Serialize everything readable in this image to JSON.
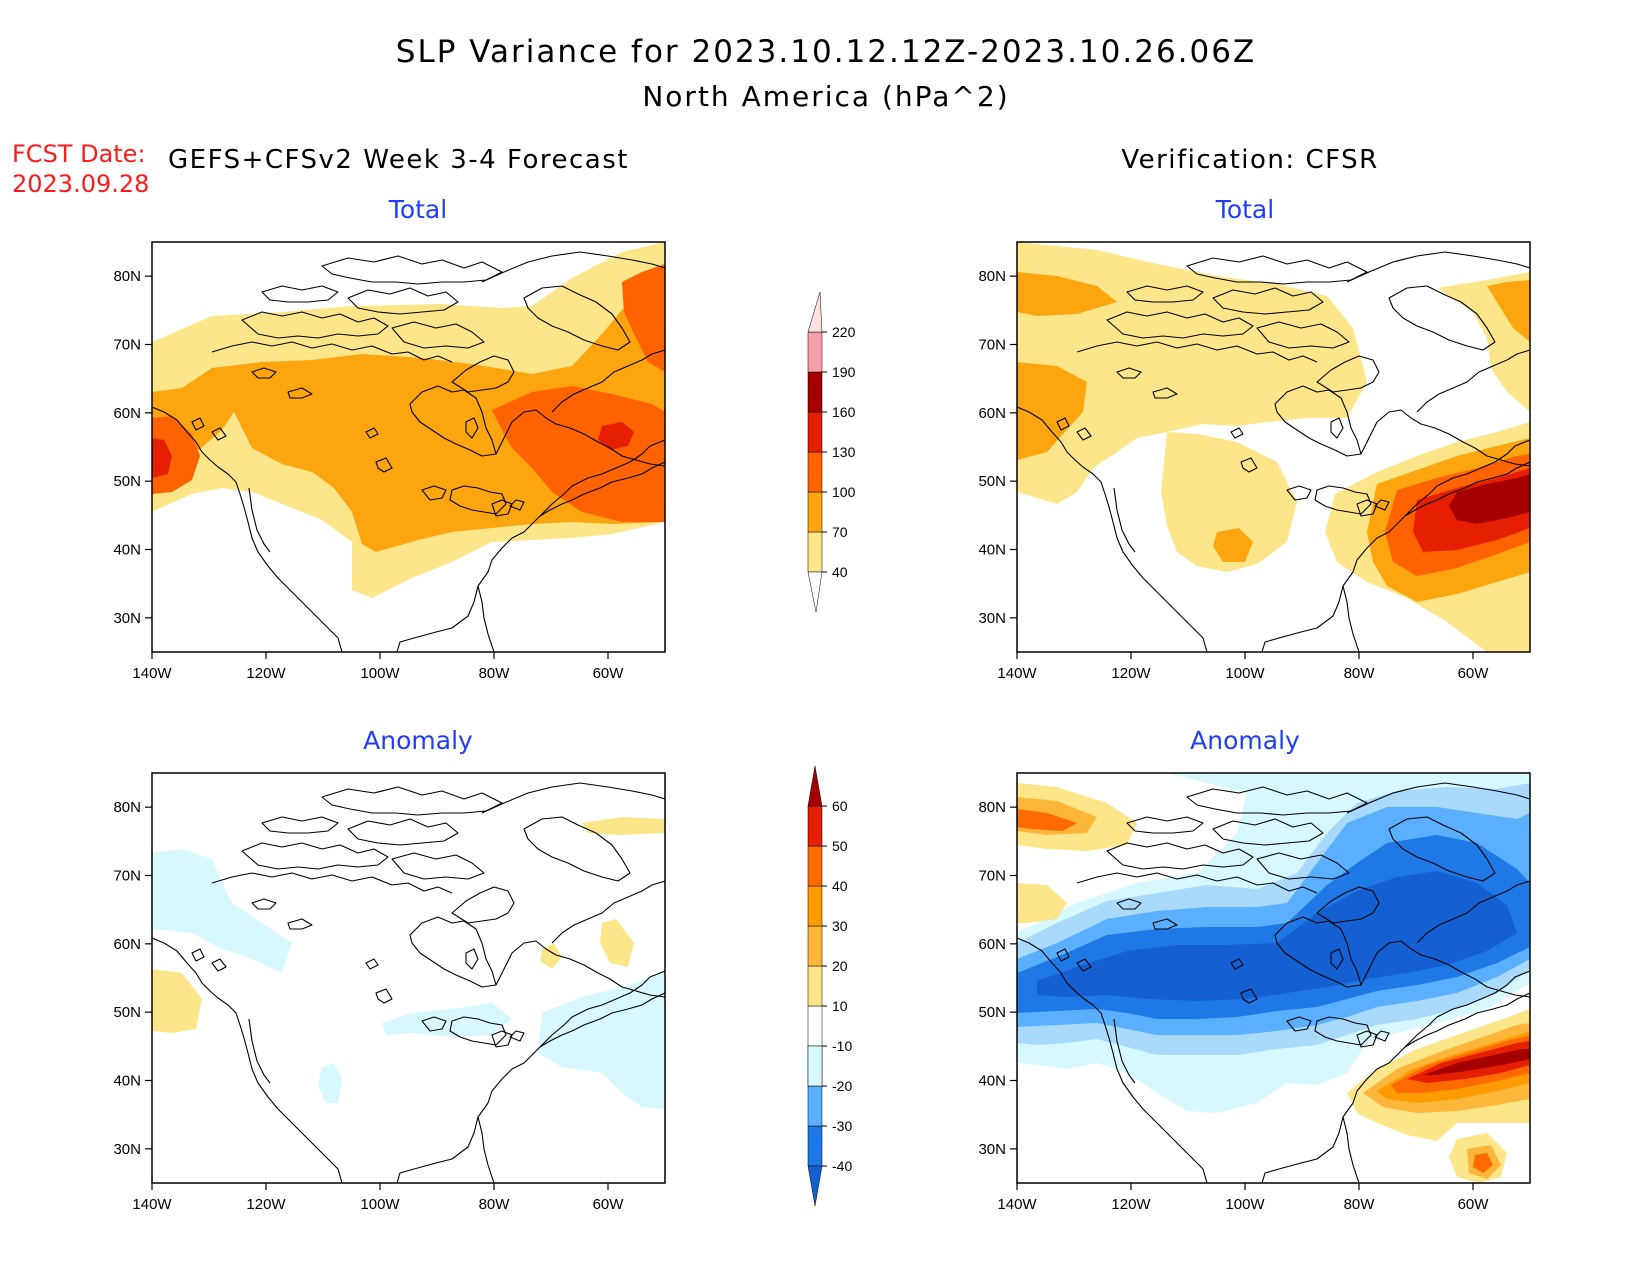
{
  "title_line1": "SLP Variance for 2023.10.12.12Z-2023.10.26.06Z",
  "title_line2": "North America (hPa^2)",
  "fcst_label": "FCST Date:",
  "fcst_date": "2023.09.28",
  "left_header": "GEFS+CFSv2 Week 3-4 Forecast",
  "right_header": "Verification: CFSR",
  "panel_titles": {
    "total": "Total",
    "anomaly": "Anomaly"
  },
  "map_extent": {
    "lon": [
      -140,
      -50
    ],
    "lat": [
      25,
      85
    ]
  },
  "lon_ticks": [
    "140W",
    "120W",
    "100W",
    "80W",
    "60W"
  ],
  "lat_ticks": [
    "30N",
    "40N",
    "50N",
    "60N",
    "70N",
    "80N"
  ],
  "colors": {
    "total": [
      "#fde68a",
      "#fda50f",
      "#ff6300",
      "#e61f00",
      "#a50000",
      "#f5a0a8",
      "#fde0e0"
    ],
    "anomaly_pos": [
      "#fde68a",
      "#fdb53a",
      "#fd9b00",
      "#ff6a00",
      "#e61f00",
      "#a50000"
    ],
    "anomaly_neg": [
      "#d7f8ff",
      "#a9d9fb",
      "#5ab0ff",
      "#1e78e6",
      "#1460d2"
    ]
  },
  "total_colorbar": {
    "labels": [
      "40",
      "70",
      "100",
      "130",
      "160",
      "190",
      "220"
    ]
  },
  "anomaly_colorbar": {
    "labels": [
      "-40",
      "-30",
      "-20",
      "-10",
      "10",
      "20",
      "30",
      "40",
      "50",
      "60"
    ]
  }
}
